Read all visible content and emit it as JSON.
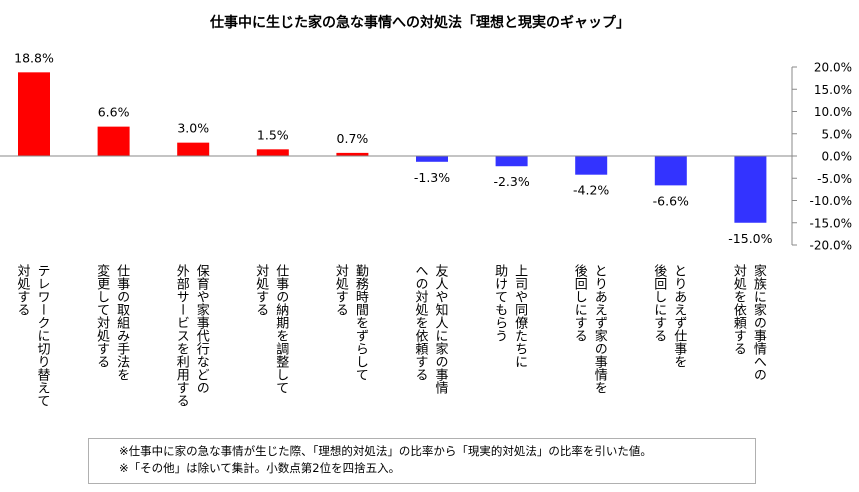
{
  "chart_data": {
    "type": "bar",
    "title": "仕事中に生じた家の急な事情への対処法「理想と現実のギャップ」",
    "categories": [
      [
        "テレワークに切り替えて",
        "対処する"
      ],
      [
        "仕事の取組み手法を",
        "変更して対処する"
      ],
      [
        "保育や家事代行などの",
        "外部サービスを利用する"
      ],
      [
        "仕事の納期を調整して",
        "対処する"
      ],
      [
        "勤務時間をずらして",
        "対処する"
      ],
      [
        "友人や知人に家の事情",
        "への対処を依頼する"
      ],
      [
        "上司や同僚たちに",
        "助けてもらう"
      ],
      [
        "とりあえず家の事情を",
        "後回しにする"
      ],
      [
        "とりあえず仕事を",
        "後回しにする"
      ],
      [
        "家族に家の事情への",
        "対処を依頼する"
      ]
    ],
    "values": [
      18.8,
      6.6,
      3.0,
      1.5,
      0.7,
      -1.3,
      -2.3,
      -4.2,
      -6.6,
      -15.0
    ],
    "value_labels": [
      "18.8%",
      "6.6%",
      "3.0%",
      "1.5%",
      "0.7%",
      "-1.3%",
      "-2.3%",
      "-4.2%",
      "-6.6%",
      "-15.0%"
    ],
    "y_ticks": [
      20,
      15,
      10,
      5,
      0,
      -5,
      -10,
      -15,
      -20
    ],
    "y_tick_labels": [
      "20.0%",
      "15.0%",
      "10.0%",
      "5.0%",
      "0.0%",
      "-5.0%",
      "-10.0%",
      "-15.0%",
      "-20.0%"
    ],
    "ylim": [
      -20,
      20
    ],
    "y_axis_side": "right",
    "grid": false,
    "colors": {
      "positive": "#ff0000",
      "negative": "#3333ff",
      "axis": "#888888"
    }
  },
  "notes": [
    "※仕事中に家の急な事情が生じた際、「理想的対処法」の比率から「現実的対処法」の比率を引いた値。",
    "※「その他」は除いて集計。小数点第2位を四捨五入。"
  ]
}
